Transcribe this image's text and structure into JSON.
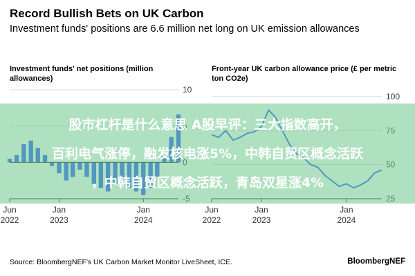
{
  "header": {
    "title": "Record Bullish Bets on UK Carbon",
    "subtitle": "Investment funds' positions are 6.6 million net long on UK emission allowances"
  },
  "overlay": {
    "line1": "股市杠杆是什么意思 A股早评：三大指数高开，",
    "line2": "百利电气涨停，融发核电涨5%，中韩自贸区概念活跃",
    "line3": "，中韩自贸区概念活跃，青岛双星涨4%"
  },
  "footer": {
    "source": "Source: BloombergNEF's UK Carbon Market Monitor LiveSheet, ICE.",
    "brand": "BloombergNEF"
  },
  "colors": {
    "accent": "#2f5bff",
    "overlay_band": "#6ec88c",
    "grid": "#d8d8d8",
    "axis": "#222222"
  },
  "chart_data": [
    {
      "type": "bar",
      "title": "Investment funds' net positions (million allowances)",
      "xlabel": "",
      "ylabel": "",
      "ylim": [
        -5,
        10
      ],
      "yticks": [
        "10",
        "5",
        "0",
        "-5"
      ],
      "xtick_labels": [
        [
          "Jun",
          "2022"
        ],
        [
          "Jan",
          "2023"
        ],
        [
          "Jan",
          "2024"
        ]
      ],
      "xticks": [
        "2022-06-01",
        "2023-01-01",
        "2024-01-01"
      ],
      "grid": true,
      "series": [
        {
          "values": [
            {
              "x": "2022-06-01",
              "y": 0.5
            },
            {
              "x": "2022-07-01",
              "y": 1.0
            },
            {
              "x": "2022-08-01",
              "y": 2.5
            },
            {
              "x": "2022-09-01",
              "y": 3.0
            },
            {
              "x": "2022-10-01",
              "y": 2.0
            },
            {
              "x": "2022-11-01",
              "y": 1.0
            },
            {
              "x": "2022-12-01",
              "y": -0.5
            },
            {
              "x": "2023-01-01",
              "y": -1.5
            },
            {
              "x": "2023-02-01",
              "y": -2.5
            },
            {
              "x": "2023-03-01",
              "y": -2.0
            },
            {
              "x": "2023-04-01",
              "y": -1.0
            },
            {
              "x": "2023-05-01",
              "y": -2.0
            },
            {
              "x": "2023-06-01",
              "y": -3.0
            },
            {
              "x": "2023-07-01",
              "y": -3.5
            },
            {
              "x": "2023-08-01",
              "y": -4.0
            },
            {
              "x": "2023-09-01",
              "y": -3.0
            },
            {
              "x": "2023-10-01",
              "y": -2.5
            },
            {
              "x": "2023-11-01",
              "y": -3.5
            },
            {
              "x": "2023-12-01",
              "y": -4.0
            },
            {
              "x": "2024-01-01",
              "y": -4.5
            },
            {
              "x": "2024-02-01",
              "y": -3.5
            },
            {
              "x": "2024-03-01",
              "y": -2.0
            },
            {
              "x": "2024-04-01",
              "y": 1.0
            },
            {
              "x": "2024-05-01",
              "y": 3.5
            },
            {
              "x": "2024-06-01",
              "y": 6.6
            }
          ]
        }
      ]
    },
    {
      "type": "line",
      "title": "Front-year UK carbon allowance price (£ per metric ton CO2e)",
      "xlabel": "",
      "ylabel": "",
      "ylim": [
        25,
        105
      ],
      "yticks": [
        "100",
        "75",
        "50",
        "25"
      ],
      "xtick_labels": [
        [
          "Jun",
          "2022"
        ],
        [
          "Jan",
          "2023"
        ],
        [
          "Jan",
          "2024"
        ]
      ],
      "xticks": [
        "2022-06-01",
        "2023-01-01",
        "2024-01-01"
      ],
      "grid": true,
      "series": [
        {
          "values": [
            {
              "x": "2022-06-01",
              "y": 72
            },
            {
              "x": "2022-07-01",
              "y": 70
            },
            {
              "x": "2022-08-01",
              "y": 75
            },
            {
              "x": "2022-09-01",
              "y": 68
            },
            {
              "x": "2022-10-01",
              "y": 70
            },
            {
              "x": "2022-11-01",
              "y": 73
            },
            {
              "x": "2022-12-01",
              "y": 74
            },
            {
              "x": "2023-01-01",
              "y": 78
            },
            {
              "x": "2023-02-01",
              "y": 90
            },
            {
              "x": "2023-03-01",
              "y": 85
            },
            {
              "x": "2023-04-01",
              "y": 75
            },
            {
              "x": "2023-05-01",
              "y": 65
            },
            {
              "x": "2023-06-01",
              "y": 58
            },
            {
              "x": "2023-07-01",
              "y": 55
            },
            {
              "x": "2023-08-01",
              "y": 50
            },
            {
              "x": "2023-09-01",
              "y": 48
            },
            {
              "x": "2023-10-01",
              "y": 42
            },
            {
              "x": "2023-11-01",
              "y": 38
            },
            {
              "x": "2023-12-01",
              "y": 34
            },
            {
              "x": "2024-01-01",
              "y": 36
            },
            {
              "x": "2024-02-01",
              "y": 33
            },
            {
              "x": "2024-03-01",
              "y": 35
            },
            {
              "x": "2024-04-01",
              "y": 38
            },
            {
              "x": "2024-05-01",
              "y": 44
            },
            {
              "x": "2024-06-01",
              "y": 46
            }
          ]
        }
      ]
    }
  ]
}
